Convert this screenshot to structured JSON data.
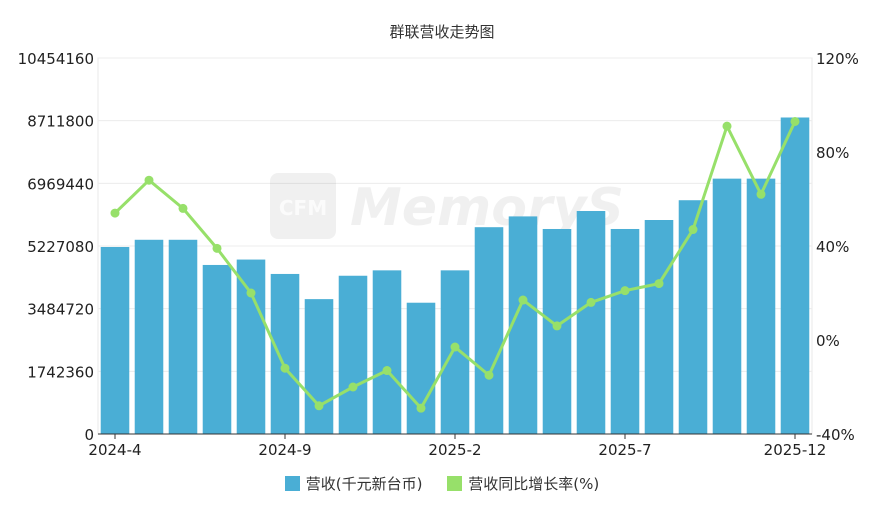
{
  "chart_data": {
    "type": "bar",
    "title": "群联营收走势图",
    "watermark": "CFM MemoryS",
    "x": [
      "2024-4",
      "2024-5",
      "2024-6",
      "2024-7",
      "2024-8",
      "2024-9",
      "2024-10",
      "2024-11",
      "2024-12",
      "2025-1",
      "2025-2",
      "2025-3",
      "2025-4",
      "2025-5",
      "2025-6",
      "2025-7",
      "2025-8",
      "2025-9",
      "2025-10",
      "2025-11",
      "2025-12"
    ],
    "x_tick_labels": [
      "2024-4",
      "2024-9",
      "2025-2",
      "2025-7",
      "2025-12"
    ],
    "y_left": {
      "ylim": [
        0,
        10454160
      ],
      "ticks": [
        "0",
        "1742360",
        "3484720",
        "5227080",
        "6969440",
        "8711800",
        "10454160"
      ]
    },
    "y_right": {
      "ylim": [
        -40,
        120
      ],
      "ticks": [
        "-40%",
        "0%",
        "40%",
        "80%",
        "120%"
      ]
    },
    "grid": true,
    "legend_position": "bottom",
    "series": [
      {
        "name": "营收(千元新台币)",
        "type": "bar",
        "axis": "left",
        "color": "#4aaed5",
        "values": [
          5200000,
          5400000,
          5400000,
          4700000,
          4850000,
          4450000,
          3750000,
          4400000,
          4550000,
          3650000,
          4550000,
          5750000,
          6050000,
          5700000,
          6200000,
          5700000,
          5950000,
          6500000,
          7100000,
          7100000,
          8800000
        ]
      },
      {
        "name": "营收同比增长率(%)",
        "type": "line",
        "axis": "right",
        "color": "#97e06a",
        "values": [
          54,
          68,
          56,
          39,
          20,
          -12,
          -28,
          -20,
          -13,
          -29,
          -3,
          -15,
          17,
          6,
          16,
          21,
          24,
          47,
          91,
          62,
          93
        ]
      }
    ]
  }
}
